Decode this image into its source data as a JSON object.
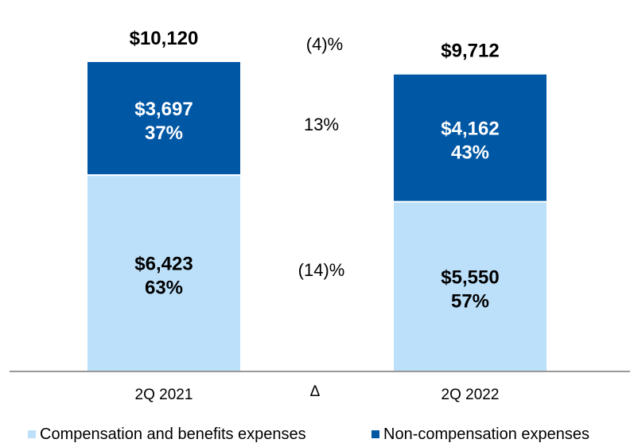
{
  "chart_data": {
    "type": "bar",
    "stacked": true,
    "categories": [
      "2Q 2021",
      "2Q 2022"
    ],
    "series": [
      {
        "name": "Compensation and benefits expenses",
        "values": [
          6423,
          5550
        ],
        "value_labels": [
          "$6,423",
          "$5,550"
        ],
        "pct_labels": [
          "63%",
          "57%"
        ],
        "color": "#bde0fa",
        "label_color": "#000000"
      },
      {
        "name": "Non-compensation expenses",
        "values": [
          3697,
          4162
        ],
        "value_labels": [
          "$3,697",
          "$4,162"
        ],
        "pct_labels": [
          "37%",
          "43%"
        ],
        "color": "#0057a4",
        "label_color": "#ffffff"
      }
    ],
    "totals": [
      10120,
      9712
    ],
    "total_labels": [
      "$10,120",
      "$9,712"
    ],
    "delta": {
      "header": "Δ",
      "total": "(4)%",
      "non_compensation": "13%",
      "compensation": "(14)%"
    },
    "legend_position": "bottom",
    "ylim": [
      0,
      10120
    ]
  }
}
